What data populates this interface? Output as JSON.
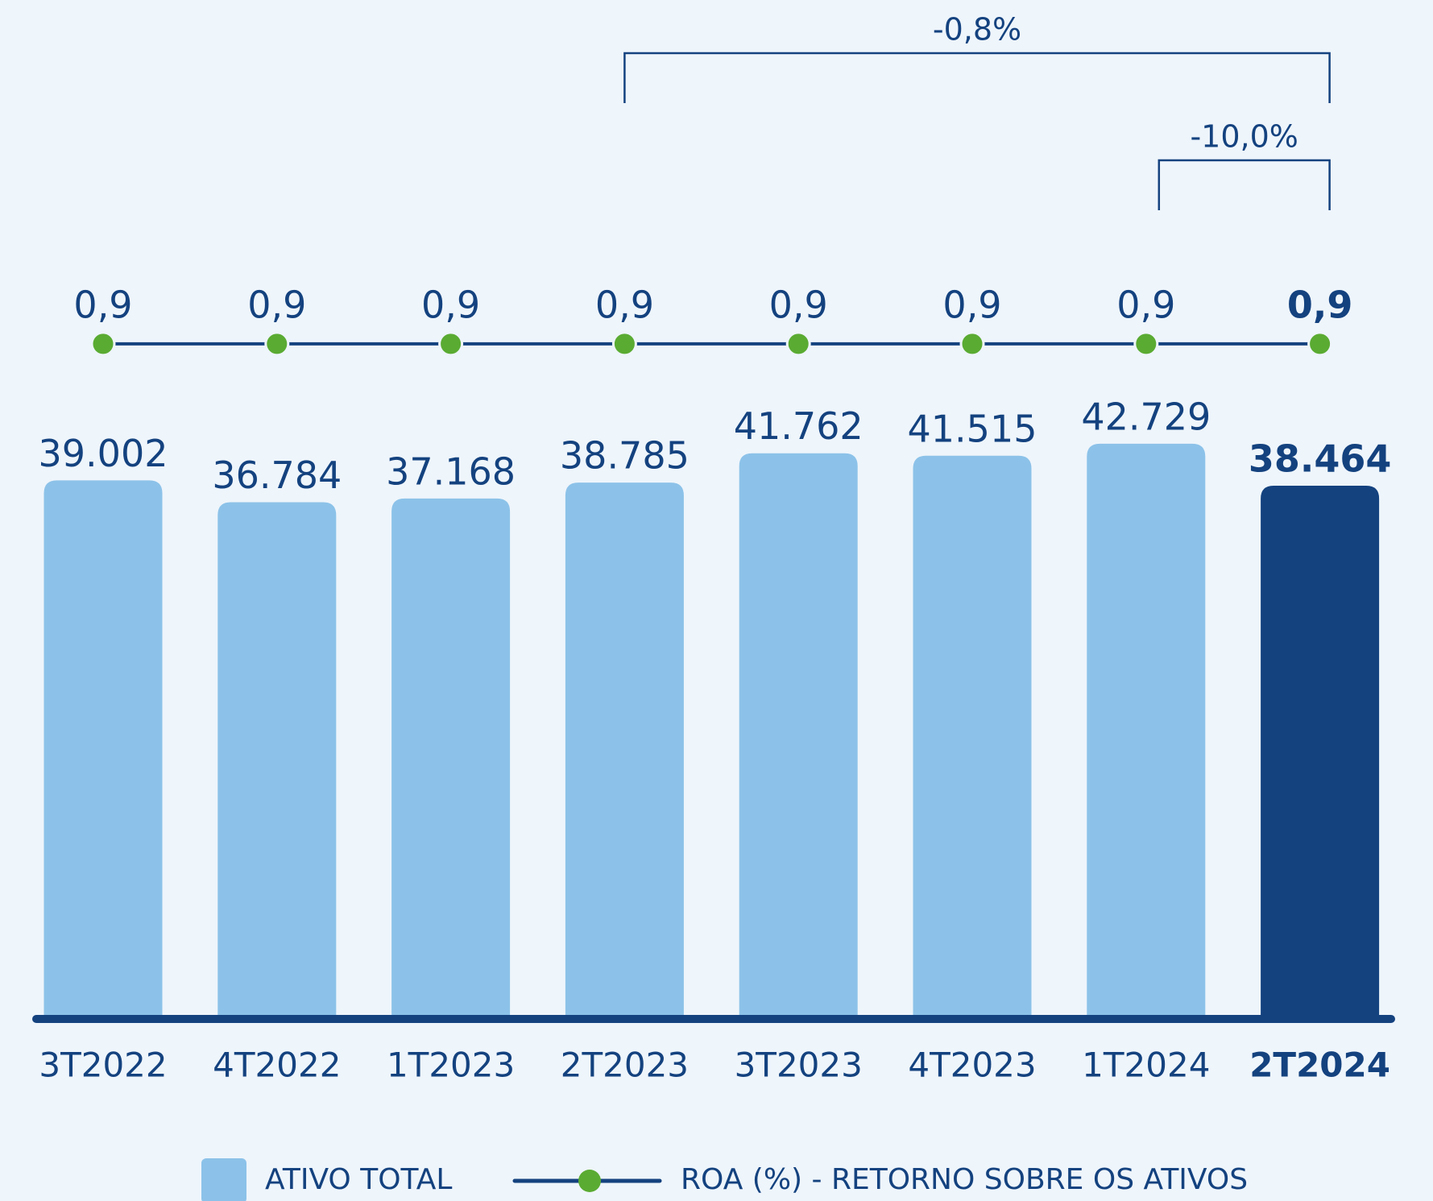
{
  "chart_data": {
    "type": "bar",
    "categories": [
      "3T2022",
      "4T2022",
      "1T2023",
      "2T2023",
      "3T2023",
      "4T2023",
      "1T2024",
      "2T2024"
    ],
    "highlight_category": "2T2024",
    "ylim": [
      -15600,
      46000
    ],
    "y2lim": [
      0,
      1
    ],
    "series": [
      {
        "name": "ATIVO TOTAL",
        "type": "bar",
        "color": "#8cc2e9",
        "highlight_color": "#14427f",
        "values": [
          39002,
          36784,
          37168,
          38785,
          41762,
          41515,
          42729,
          38464
        ],
        "value_labels": [
          "39.002",
          "36.784",
          "37.168",
          "38.785",
          "41.762",
          "41.515",
          "42.729",
          "38.464"
        ]
      },
      {
        "name": "ROA (%) - RETORNO SOBRE OS ATIVOS",
        "type": "line",
        "axis": "y2",
        "color": "#14427f",
        "marker_color": "#5aab32",
        "values": [
          0.9,
          0.9,
          0.9,
          0.9,
          0.9,
          0.9,
          0.9,
          0.9
        ],
        "value_labels": [
          "0,9",
          "0,9",
          "0,9",
          "0,9",
          "0,9",
          "0,9",
          "0,9",
          "0,9"
        ]
      }
    ],
    "annotations": [
      {
        "text": "-0,8%",
        "from": "2T2023",
        "to": "2T2024"
      },
      {
        "text": "-10,0%",
        "from": "1T2024",
        "to": "2T2024"
      }
    ]
  }
}
